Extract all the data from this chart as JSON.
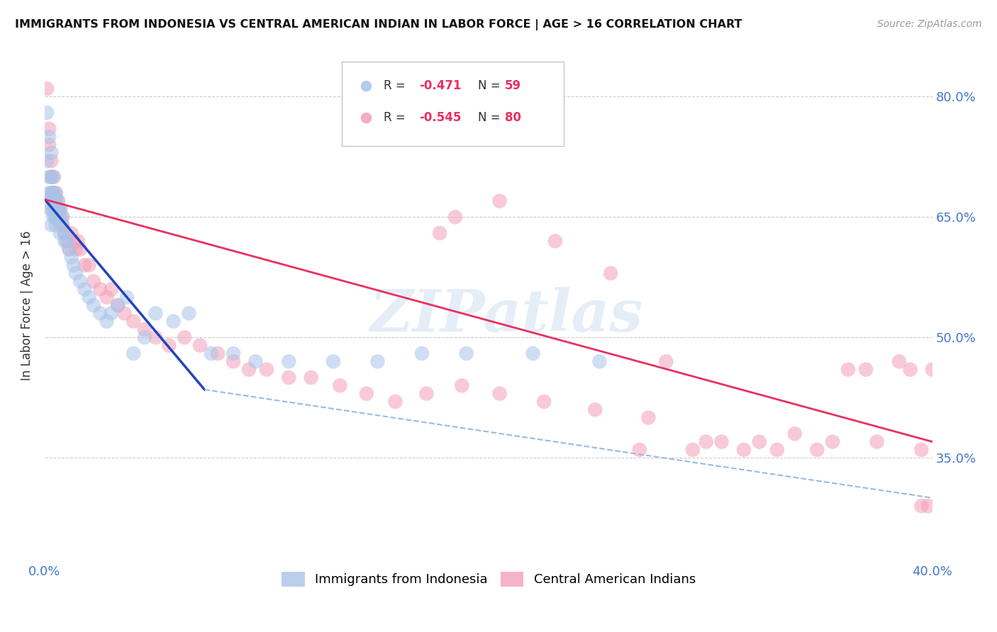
{
  "title": "IMMIGRANTS FROM INDONESIA VS CENTRAL AMERICAN INDIAN IN LABOR FORCE | AGE > 16 CORRELATION CHART",
  "source": "Source: ZipAtlas.com",
  "ylabel": "In Labor Force | Age > 16",
  "x_min": 0.0,
  "x_max": 0.4,
  "y_min": 0.22,
  "y_max": 0.86,
  "y_ticks": [
    0.35,
    0.5,
    0.65,
    0.8
  ],
  "y_tick_labels": [
    "35.0%",
    "50.0%",
    "65.0%",
    "80.0%"
  ],
  "x_ticks": [
    0.0,
    0.1,
    0.2,
    0.3,
    0.4
  ],
  "x_tick_labels": [
    "0.0%",
    "",
    "",
    "",
    "40.0%"
  ],
  "blue_color": "#a8c4e8",
  "pink_color": "#f4a0b8",
  "blue_line_color": "#2244bb",
  "pink_line_color": "#e83060",
  "dashed_line_color": "#99bbdd",
  "tick_label_color": "#4477cc",
  "watermark": "ZIPatlas",
  "blue_line_x": [
    0.0,
    0.072
  ],
  "blue_line_y": [
    0.672,
    0.435
  ],
  "pink_line_x": [
    0.0,
    0.4
  ],
  "pink_line_y": [
    0.672,
    0.37
  ],
  "dashed_line_x": [
    0.072,
    0.4
  ],
  "dashed_line_y": [
    0.435,
    0.3
  ],
  "blue_scatter_x": [
    0.001,
    0.001,
    0.002,
    0.002,
    0.002,
    0.002,
    0.003,
    0.003,
    0.003,
    0.003,
    0.003,
    0.004,
    0.004,
    0.004,
    0.004,
    0.005,
    0.005,
    0.005,
    0.005,
    0.005,
    0.006,
    0.006,
    0.006,
    0.007,
    0.007,
    0.007,
    0.008,
    0.008,
    0.009,
    0.009,
    0.01,
    0.011,
    0.012,
    0.013,
    0.014,
    0.016,
    0.018,
    0.02,
    0.022,
    0.025,
    0.028,
    0.03,
    0.033,
    0.037,
    0.04,
    0.045,
    0.05,
    0.058,
    0.065,
    0.075,
    0.085,
    0.095,
    0.11,
    0.13,
    0.15,
    0.17,
    0.19,
    0.22,
    0.25
  ],
  "blue_scatter_y": [
    0.78,
    0.72,
    0.75,
    0.7,
    0.68,
    0.66,
    0.73,
    0.7,
    0.68,
    0.66,
    0.64,
    0.7,
    0.68,
    0.66,
    0.65,
    0.68,
    0.67,
    0.66,
    0.65,
    0.64,
    0.67,
    0.66,
    0.65,
    0.66,
    0.65,
    0.63,
    0.65,
    0.64,
    0.63,
    0.62,
    0.62,
    0.61,
    0.6,
    0.59,
    0.58,
    0.57,
    0.56,
    0.55,
    0.54,
    0.53,
    0.52,
    0.53,
    0.54,
    0.55,
    0.48,
    0.5,
    0.53,
    0.52,
    0.53,
    0.48,
    0.48,
    0.47,
    0.47,
    0.47,
    0.47,
    0.48,
    0.48,
    0.48,
    0.47
  ],
  "pink_scatter_x": [
    0.001,
    0.002,
    0.002,
    0.003,
    0.003,
    0.003,
    0.004,
    0.004,
    0.004,
    0.005,
    0.005,
    0.005,
    0.006,
    0.006,
    0.007,
    0.007,
    0.008,
    0.008,
    0.009,
    0.01,
    0.011,
    0.012,
    0.013,
    0.014,
    0.015,
    0.016,
    0.018,
    0.02,
    0.022,
    0.025,
    0.028,
    0.03,
    0.033,
    0.036,
    0.04,
    0.045,
    0.05,
    0.056,
    0.063,
    0.07,
    0.078,
    0.085,
    0.092,
    0.1,
    0.11,
    0.12,
    0.133,
    0.145,
    0.158,
    0.172,
    0.188,
    0.205,
    0.225,
    0.248,
    0.272,
    0.298,
    0.322,
    0.348,
    0.37,
    0.39,
    0.395,
    0.398,
    0.178,
    0.185,
    0.205,
    0.23,
    0.255,
    0.28,
    0.305,
    0.33,
    0.355,
    0.375,
    0.268,
    0.292,
    0.315,
    0.338,
    0.362,
    0.385,
    0.395,
    0.4
  ],
  "pink_scatter_y": [
    0.81,
    0.76,
    0.74,
    0.72,
    0.7,
    0.68,
    0.7,
    0.68,
    0.67,
    0.68,
    0.67,
    0.65,
    0.67,
    0.66,
    0.66,
    0.64,
    0.65,
    0.64,
    0.63,
    0.62,
    0.61,
    0.63,
    0.62,
    0.61,
    0.62,
    0.61,
    0.59,
    0.59,
    0.57,
    0.56,
    0.55,
    0.56,
    0.54,
    0.53,
    0.52,
    0.51,
    0.5,
    0.49,
    0.5,
    0.49,
    0.48,
    0.47,
    0.46,
    0.46,
    0.45,
    0.45,
    0.44,
    0.43,
    0.42,
    0.43,
    0.44,
    0.43,
    0.42,
    0.41,
    0.4,
    0.37,
    0.37,
    0.36,
    0.46,
    0.46,
    0.29,
    0.29,
    0.63,
    0.65,
    0.67,
    0.62,
    0.58,
    0.47,
    0.37,
    0.36,
    0.37,
    0.37,
    0.36,
    0.36,
    0.36,
    0.38,
    0.46,
    0.47,
    0.36,
    0.46
  ]
}
